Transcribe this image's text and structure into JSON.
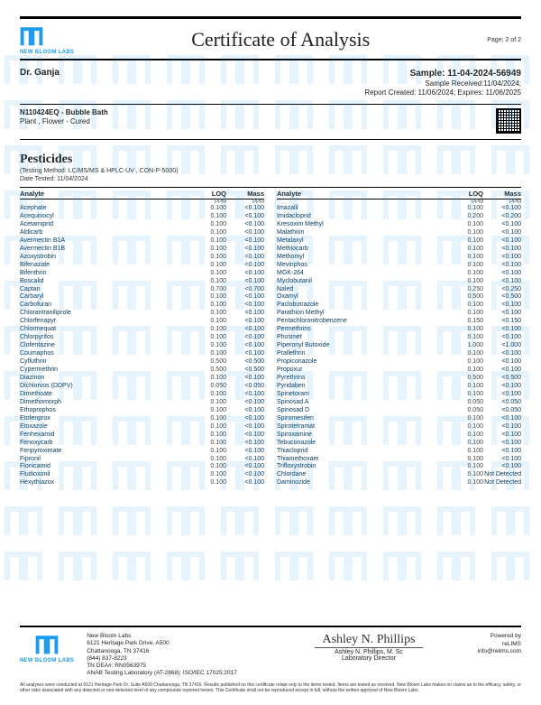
{
  "brand": {
    "name": "NEW BLOOM LABS",
    "logo_color": "#1d9bf0"
  },
  "document": {
    "title": "Certificate of Analysis",
    "page_label": "Page: 2 of 2"
  },
  "header": {
    "client": "Dr. Ganja",
    "sample_id": "Sample: 11-04-2024-56949",
    "received": "Sample Received:11/04/2024;",
    "created_expires": "Report Created: 11/06/2024; Expires: 11/06/2025"
  },
  "product": {
    "id_name": "N110424EQ - Bubble Bath",
    "type": "Plant , Flower - Cured"
  },
  "section": {
    "title": "Pesticides",
    "method": "(Testing Method: LC/MS/MS & HPLC-UV , CON-P-5000)",
    "date_tested": "Date Tested: 11/04/2024"
  },
  "table": {
    "headers": {
      "analyte": "Analyte",
      "loq": "LOQ",
      "mass": "Mass"
    },
    "units": {
      "loq": "PPM",
      "mass": "PPM"
    },
    "left": [
      {
        "a": "Acephate",
        "l": "0.100",
        "m": "<0.100"
      },
      {
        "a": "Acequinocyl",
        "l": "0.100",
        "m": "<0.100"
      },
      {
        "a": "Acetamiprid",
        "l": "0.100",
        "m": "<0.100"
      },
      {
        "a": "Aldicarb",
        "l": "0.100",
        "m": "<0.100"
      },
      {
        "a": "Avermectin B1A",
        "l": "0.100",
        "m": "<0.100"
      },
      {
        "a": "Avermectin B1B",
        "l": "0.100",
        "m": "<0.100"
      },
      {
        "a": "Azoxystrobin",
        "l": "0.100",
        "m": "<0.100"
      },
      {
        "a": "Bifenazate",
        "l": "0.100",
        "m": "<0.100"
      },
      {
        "a": "Bifenthrin",
        "l": "0.100",
        "m": "<0.100"
      },
      {
        "a": "Boscalid",
        "l": "0.100",
        "m": "<0.100"
      },
      {
        "a": "Captan",
        "l": "0.700",
        "m": "<0.700"
      },
      {
        "a": "Carbaryl",
        "l": "0.100",
        "m": "<0.100"
      },
      {
        "a": "Carbofuran",
        "l": "0.100",
        "m": "<0.100"
      },
      {
        "a": "Chlorantraniliprole",
        "l": "0.100",
        "m": "<0.100"
      },
      {
        "a": "Chlorfenapyr",
        "l": "0.100",
        "m": "<0.100"
      },
      {
        "a": "Chlormequat",
        "l": "0.100",
        "m": "<0.100"
      },
      {
        "a": "Chlorpyrifos",
        "l": "0.100",
        "m": "<0.100"
      },
      {
        "a": "Clofentazine",
        "l": "0.100",
        "m": "<0.100"
      },
      {
        "a": "Coumaphos",
        "l": "0.100",
        "m": "<0.100"
      },
      {
        "a": "Cyfluthrin",
        "l": "0.500",
        "m": "<0.500"
      },
      {
        "a": "Cypermethrin",
        "l": "0.500",
        "m": "<0.500"
      },
      {
        "a": "Diazinon",
        "l": "0.100",
        "m": "<0.100"
      },
      {
        "a": "Dichlorvos (DDPV)",
        "l": "0.050",
        "m": "<0.050"
      },
      {
        "a": "Dimethoate",
        "l": "0.100",
        "m": "<0.100"
      },
      {
        "a": "Dimethomorph",
        "l": "0.100",
        "m": "<0.100"
      },
      {
        "a": "Ethoprophos",
        "l": "0.100",
        "m": "<0.100"
      },
      {
        "a": "Etofenprox",
        "l": "0.100",
        "m": "<0.100"
      },
      {
        "a": "Etoxazole",
        "l": "0.100",
        "m": "<0.100"
      },
      {
        "a": "Fenhexamid",
        "l": "0.100",
        "m": "<0.100"
      },
      {
        "a": "Fenoxycarb",
        "l": "0.100",
        "m": "<0.100"
      },
      {
        "a": "Fenpyroximate",
        "l": "0.100",
        "m": "<0.100"
      },
      {
        "a": "Fipronil",
        "l": "0.100",
        "m": "<0.100"
      },
      {
        "a": "Flonicamid",
        "l": "0.100",
        "m": "<0.100"
      },
      {
        "a": "Fludioxonil",
        "l": "0.100",
        "m": "<0.100"
      },
      {
        "a": "Hexythiazox",
        "l": "0.100",
        "m": "<0.100"
      }
    ],
    "right": [
      {
        "a": "Imazalil",
        "l": "0.100",
        "m": "<0.100"
      },
      {
        "a": "Imidacloprid",
        "l": "0.200",
        "m": "<0.200"
      },
      {
        "a": "Kresoxim Methyl",
        "l": "0.100",
        "m": "<0.100"
      },
      {
        "a": "Malathion",
        "l": "0.100",
        "m": "<0.100"
      },
      {
        "a": "Metalaxyl",
        "l": "0.100",
        "m": "<0.100"
      },
      {
        "a": "Methiocarb",
        "l": "0.100",
        "m": "<0.100"
      },
      {
        "a": "Methomyl",
        "l": "0.100",
        "m": "<0.100"
      },
      {
        "a": "Mevinphos",
        "l": "0.100",
        "m": "<0.100"
      },
      {
        "a": "MGK-264",
        "l": "0.100",
        "m": "<0.100"
      },
      {
        "a": "Myclobutanil",
        "l": "0.100",
        "m": "<0.100"
      },
      {
        "a": "Naled",
        "l": "0.250",
        "m": "<0.250"
      },
      {
        "a": "Oxamyl",
        "l": "0.500",
        "m": "<0.500"
      },
      {
        "a": "Paclobutrazole",
        "l": "0.100",
        "m": "<0.100"
      },
      {
        "a": "Parathion Methyl",
        "l": "0.100",
        "m": "<0.100"
      },
      {
        "a": "Pentachloronitrobenzene",
        "l": "0.150",
        "m": "<0.150"
      },
      {
        "a": "Permethrins",
        "l": "0.100",
        "m": "<0.100"
      },
      {
        "a": "Phosmet",
        "l": "0.100",
        "m": "<0.100"
      },
      {
        "a": "Piperonyl Butoxide",
        "l": "1.000",
        "m": "<1.000"
      },
      {
        "a": "Prallethrin",
        "l": "0.100",
        "m": "<0.100"
      },
      {
        "a": "Propiconazole",
        "l": "0.100",
        "m": "<0.100"
      },
      {
        "a": "Propoxur",
        "l": "0.100",
        "m": "<0.100"
      },
      {
        "a": "Pyrethrins",
        "l": "0.500",
        "m": "<0.500"
      },
      {
        "a": "Pyridaben",
        "l": "0.100",
        "m": "<0.100"
      },
      {
        "a": "Spinetoram",
        "l": "0.100",
        "m": "<0.100"
      },
      {
        "a": "Spinosad A",
        "l": "0.050",
        "m": "<0.050"
      },
      {
        "a": "Spinosad D",
        "l": "0.050",
        "m": "<0.050"
      },
      {
        "a": "Spiromesifen",
        "l": "0.100",
        "m": "<0.100"
      },
      {
        "a": "Spirotetramat",
        "l": "0.100",
        "m": "<0.100"
      },
      {
        "a": "Spiroxamine",
        "l": "0.100",
        "m": "<0.100"
      },
      {
        "a": "Tebuconazole",
        "l": "0.100",
        "m": "<0.100"
      },
      {
        "a": "Thiacloprid",
        "l": "0.100",
        "m": "<0.100"
      },
      {
        "a": "Thiamethoxam",
        "l": "0.100",
        "m": "<0.100"
      },
      {
        "a": "Trifloxystrobin",
        "l": "0.100",
        "m": "<0.100"
      },
      {
        "a": "Chlordane",
        "l": "0.100",
        "m": "Not Detected"
      },
      {
        "a": "Daminozide",
        "l": "0.100",
        "m": "Not Detected"
      }
    ]
  },
  "footer": {
    "company": "New Bloom Labs",
    "addr1": "6121 Heritage Park Drive, A500",
    "addr2": "Chattanooga, TN 37416",
    "phone": "(844) 837-8223",
    "dea": "TN DEA#: RN0563975",
    "accred": "ANAB Testing Laboratory (AT-2868): ISO/IEC 17025:2017",
    "sig_text": "Ashley N. Phillips",
    "director": "Ashley N. Phillips, M. Sc",
    "role": "Laboratory Director",
    "powered": "Powered by",
    "relims": "reLIMS",
    "email": "info@relims.com",
    "fineprint": "All analyses were conducted at 6121 Heritage Park Dr, Suite A500 Chattanooga, TN 37416. Results published on this certificate relate only to the items tested. Items are tested as received. New Bloom Labs makes no claims as to the efficacy, safety, or other risks associated with any detected or non-detected level of any compounds reported herein. This Certificate shall not be reproduced except in full, without the written approval of New Bloom Labs."
  }
}
